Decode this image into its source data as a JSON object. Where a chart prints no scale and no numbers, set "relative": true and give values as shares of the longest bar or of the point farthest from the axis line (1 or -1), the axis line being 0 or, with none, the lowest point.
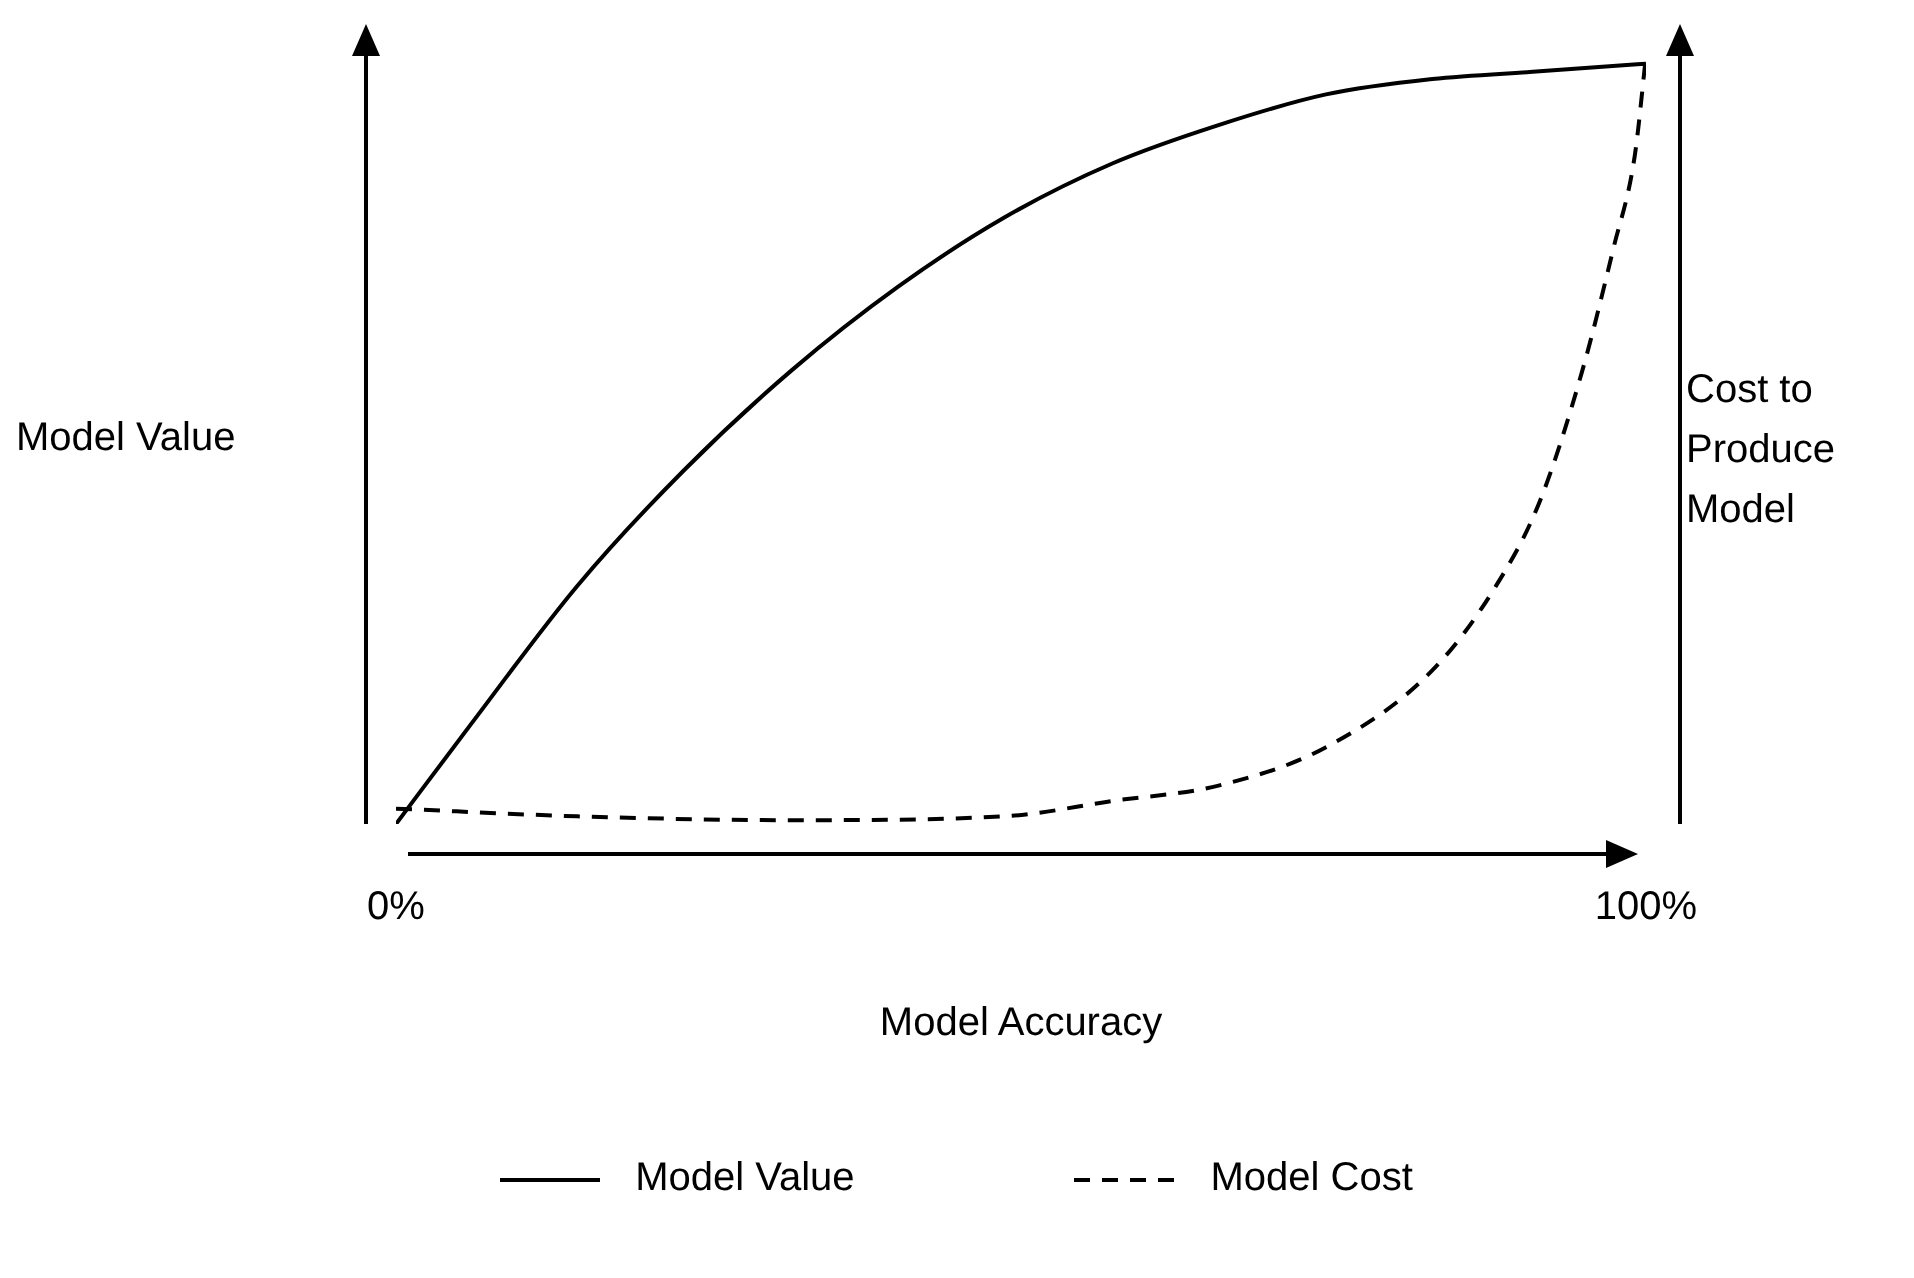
{
  "chart_data": {
    "type": "line",
    "xlabel": "Model Accuracy",
    "ylabel": "Model Value",
    "y2label": "Cost to Produce Model",
    "relative": true,
    "xlim": [
      0,
      100
    ],
    "xticks": [
      {
        "value": 0,
        "label": "0%"
      },
      {
        "value": 100,
        "label": "100%"
      }
    ],
    "grid": false,
    "legend": "bottom",
    "marker": "none",
    "series": [
      {
        "name": "Model Value",
        "color": "#000000",
        "line_style": "solid",
        "x": [
          0,
          6,
          14.5,
          23,
          31.6,
          40.2,
          48.7,
          57.3,
          65.8,
          74.4,
          82.9,
          91.5,
          100
        ],
        "values": [
          0,
          0.13,
          0.31,
          0.46,
          0.59,
          0.7,
          0.79,
          0.86,
          0.91,
          0.95,
          0.97,
          0.98,
          0.99
        ]
      },
      {
        "name": "Model Cost",
        "color": "#000000",
        "line_style": "dashed",
        "axis": "y2",
        "x": [
          0,
          14.5,
          31.6,
          48.7,
          57.3,
          65.8,
          74.4,
          82.9,
          88,
          91.5,
          94.9,
          97.4,
          99.1,
          100
        ],
        "values": [
          0.02,
          0.01,
          0.005,
          0.01,
          0.03,
          0.05,
          0.1,
          0.2,
          0.31,
          0.42,
          0.59,
          0.75,
          0.87,
          1
        ]
      }
    ]
  }
}
